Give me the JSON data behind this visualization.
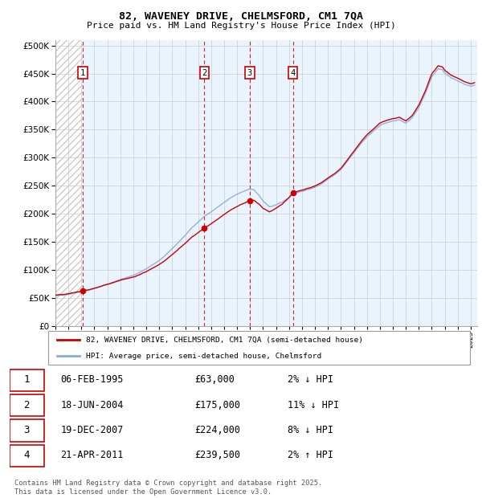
{
  "title": "82, WAVENEY DRIVE, CHELMSFORD, CM1 7QA",
  "subtitle": "Price paid vs. HM Land Registry's House Price Index (HPI)",
  "ytick_values": [
    0,
    50000,
    100000,
    150000,
    200000,
    250000,
    300000,
    350000,
    400000,
    450000,
    500000
  ],
  "ylim": [
    0,
    510000
  ],
  "xlim_start": 1993.0,
  "xlim_end": 2025.5,
  "sales": [
    {
      "year": 1995.1,
      "price": 63000,
      "label": "1"
    },
    {
      "year": 2004.47,
      "price": 175000,
      "label": "2"
    },
    {
      "year": 2007.97,
      "price": 224000,
      "label": "3"
    },
    {
      "year": 2011.3,
      "price": 239500,
      "label": "4"
    }
  ],
  "legend_line1": "82, WAVENEY DRIVE, CHELMSFORD, CM1 7QA (semi-detached house)",
  "legend_line2": "HPI: Average price, semi-detached house, Chelmsford",
  "table": [
    {
      "num": "1",
      "date": "06-FEB-1995",
      "price": "£63,000",
      "diff": "2% ↓ HPI"
    },
    {
      "num": "2",
      "date": "18-JUN-2004",
      "price": "£175,000",
      "diff": "11% ↓ HPI"
    },
    {
      "num": "3",
      "date": "19-DEC-2007",
      "price": "£224,000",
      "diff": "8% ↓ HPI"
    },
    {
      "num": "4",
      "date": "21-APR-2011",
      "price": "£239,500",
      "diff": "2% ↑ HPI"
    }
  ],
  "footer": "Contains HM Land Registry data © Crown copyright and database right 2025.\nThis data is licensed under the Open Government Licence v3.0.",
  "price_line_color": "#cc0000",
  "hpi_line_color": "#88aadd",
  "dashed_line_color": "#cc0000",
  "sale_box_color": "#cc0000",
  "grid_color": "#cccccc",
  "bg_right": "#ddeeff",
  "bg_left": "#ffffff"
}
